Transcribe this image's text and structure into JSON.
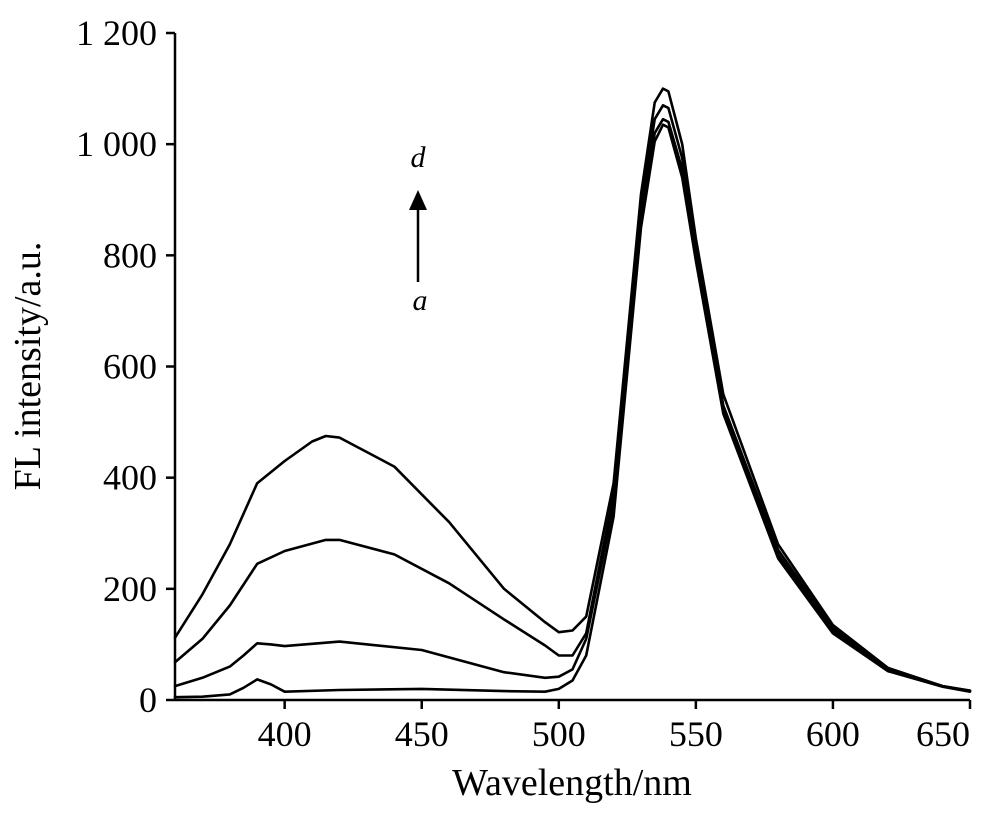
{
  "chart_data": {
    "type": "line",
    "xlabel": "Wavelength/nm",
    "ylabel": "FL intensity/a.u.",
    "xlim": [
      360,
      650
    ],
    "ylim": [
      0,
      1200
    ],
    "xticks": [
      400,
      450,
      500,
      550,
      600,
      650
    ],
    "xtick_labels": [
      "400",
      "450",
      "500",
      "550",
      "600",
      "650"
    ],
    "yticks": [
      0,
      200,
      400,
      600,
      800,
      1000,
      1200
    ],
    "ytick_labels": [
      "0",
      "200",
      "400",
      "600",
      "800",
      "1 000",
      "1 200"
    ],
    "grid": false,
    "legend": "none",
    "annotation": {
      "top_label": "d",
      "bottom_label": "a",
      "arrow": "upward",
      "position": "upper-left"
    },
    "series": [
      {
        "x": [
          360,
          370,
          380,
          385,
          390,
          395,
          400,
          420,
          450,
          480,
          495,
          500,
          505,
          510,
          520,
          530,
          535,
          538,
          540,
          545,
          550,
          560,
          580,
          600,
          620,
          640,
          650
        ],
        "y": [
          5,
          6,
          10,
          22,
          37,
          28,
          15,
          18,
          20,
          16,
          15,
          20,
          35,
          80,
          330,
          850,
          1005,
          1035,
          1030,
          940,
          790,
          515,
          255,
          120,
          52,
          24,
          15
        ]
      },
      {
        "x": [
          360,
          370,
          380,
          385,
          390,
          395,
          400,
          420,
          450,
          480,
          495,
          500,
          505,
          510,
          520,
          530,
          535,
          538,
          540,
          545,
          550,
          560,
          580,
          600,
          620,
          640,
          650
        ],
        "y": [
          25,
          40,
          60,
          80,
          102,
          100,
          97,
          105,
          90,
          50,
          40,
          42,
          55,
          110,
          350,
          870,
          1020,
          1045,
          1040,
          955,
          800,
          520,
          262,
          125,
          54,
          25,
          16
        ]
      },
      {
        "x": [
          360,
          370,
          380,
          390,
          400,
          415,
          420,
          440,
          460,
          480,
          495,
          500,
          505,
          510,
          520,
          530,
          535,
          538,
          540,
          545,
          550,
          560,
          580,
          600,
          620,
          640,
          650
        ],
        "y": [
          68,
          110,
          170,
          245,
          268,
          288,
          288,
          262,
          210,
          145,
          98,
          80,
          80,
          120,
          370,
          890,
          1045,
          1070,
          1065,
          975,
          810,
          530,
          270,
          130,
          56,
          25,
          17
        ]
      },
      {
        "x": [
          360,
          370,
          380,
          390,
          400,
          410,
          415,
          420,
          440,
          460,
          480,
          495,
          500,
          505,
          510,
          520,
          530,
          535,
          538,
          540,
          545,
          550,
          560,
          580,
          600,
          620,
          640,
          650
        ],
        "y": [
          112,
          190,
          280,
          390,
          430,
          465,
          475,
          472,
          420,
          320,
          200,
          140,
          122,
          125,
          150,
          390,
          910,
          1075,
          1100,
          1095,
          1000,
          830,
          550,
          280,
          135,
          58,
          25,
          17
        ]
      }
    ]
  }
}
